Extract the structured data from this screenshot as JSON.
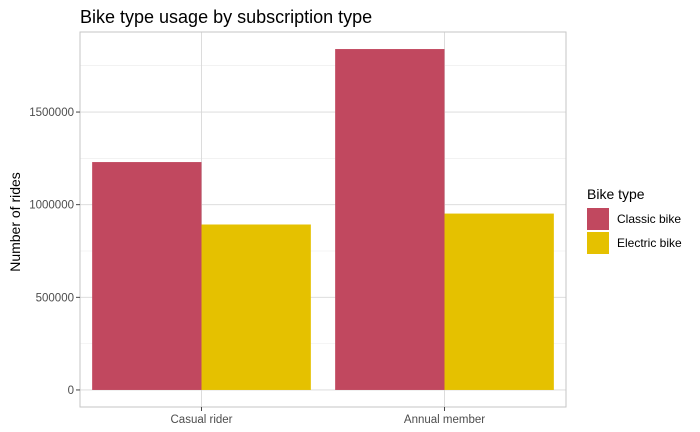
{
  "chart_data": {
    "type": "bar",
    "title": "Bike type usage by subscription type",
    "xlabel": "",
    "ylabel": "Number of rides",
    "categories": [
      "Casual rider",
      "Annual member"
    ],
    "series": [
      {
        "name": "Classic bike",
        "values": [
          1230000,
          1840000
        ],
        "color": "#c1485f"
      },
      {
        "name": "Electric bike",
        "values": [
          893000,
          952000
        ],
        "color": "#e5c100"
      }
    ],
    "yticks": [
      0,
      500000,
      1000000,
      1500000
    ],
    "ytick_labels": [
      "0",
      "500000",
      "1000000",
      "1500000"
    ],
    "ylim": [
      -92000,
      1932000
    ],
    "grid": true,
    "legend": {
      "title": "Bike type",
      "position": "right"
    }
  }
}
